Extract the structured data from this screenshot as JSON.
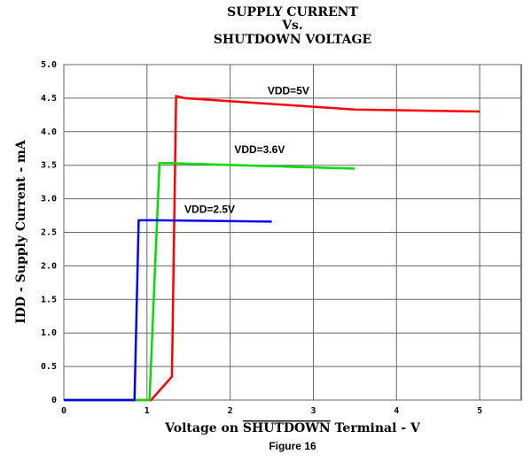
{
  "chart_data": {
    "type": "line",
    "title": "SUPPLY CURRENT",
    "subtitle_lines": [
      "Vs.",
      "SHUTDOWN VOLTAGE"
    ],
    "x_label_prefix": "Voltage on",
    "x_label_overline": "SHUTDOWN",
    "x_label_suffix": "Terminal - V",
    "y_label": "IDD - Supply Current - mA",
    "caption": "Figure 16",
    "xlim": [
      0,
      5.5
    ],
    "ylim": [
      0,
      5.0
    ],
    "xticks": [
      0,
      1,
      2,
      3,
      4,
      5
    ],
    "yticks": [
      0,
      {
        "value": 0.5,
        "label": "0.5"
      },
      {
        "value": 1.0,
        "label": "1.0"
      },
      {
        "value": 1.5,
        "label": "1.5"
      },
      {
        "value": 2.0,
        "label": "2.0"
      },
      {
        "value": 2.5,
        "label": "2.5"
      },
      {
        "value": 3.0,
        "label": "3.0"
      },
      {
        "value": 3.5,
        "label": "3.5"
      },
      {
        "value": 4.0,
        "label": "4.0"
      },
      {
        "value": 4.5,
        "label": "4.5"
      },
      {
        "value": 5.0,
        "label": "5.0"
      }
    ],
    "grid": true,
    "series": [
      {
        "name": "VDD=5V",
        "color": "#ff0000",
        "x": [
          0,
          1.05,
          1.3,
          1.35,
          1.45,
          3.5,
          5.0
        ],
        "values": [
          0,
          0,
          0.35,
          4.53,
          4.5,
          4.33,
          4.3
        ]
      },
      {
        "name": "VDD=3.6V",
        "color": "#00dd00",
        "x": [
          0,
          1.03,
          1.15,
          1.3,
          3.5
        ],
        "values": [
          0,
          0,
          3.53,
          3.53,
          3.45
        ]
      },
      {
        "name": "VDD=2.5V",
        "color": "#0000ff",
        "x": [
          0,
          0.85,
          0.9,
          1.1,
          2.5
        ],
        "values": [
          0,
          0,
          2.68,
          2.68,
          2.66
        ]
      }
    ]
  }
}
